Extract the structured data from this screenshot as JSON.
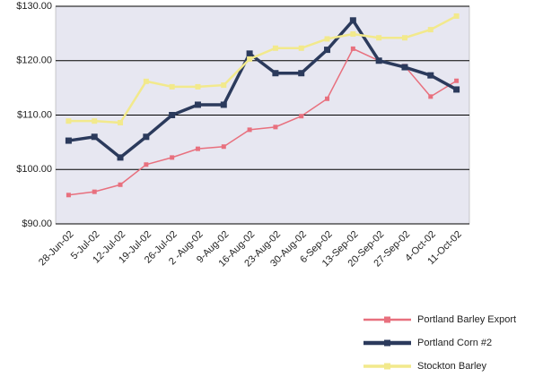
{
  "chart_data": {
    "type": "line",
    "categories": [
      "28-Jun-02",
      "5-Jul-02",
      "12-Jul-02",
      "19-Jul-02",
      "26-Jul-02",
      "2 -Aug-02",
      "9-Aug-02",
      "16-Aug-02",
      "23-Aug-02",
      "30-Aug-02",
      "6-Sep-02",
      "13-Sep-02",
      "20-Sep-02",
      "27-Sep-02",
      "4-Oct-02",
      "11-Oct-02"
    ],
    "series": [
      {
        "name": "Portland Barley Export",
        "color": "#e8707e",
        "values": [
          95.3,
          95.9,
          97.2,
          100.9,
          102.2,
          103.8,
          104.2,
          107.3,
          107.8,
          109.8,
          113.0,
          122.2,
          120.0,
          119.0,
          113.4,
          116.3
        ]
      },
      {
        "name": "Portland Corn #2",
        "color": "#2b3a5c",
        "values": [
          105.3,
          106.0,
          102.2,
          106.0,
          110.0,
          111.9,
          111.9,
          121.3,
          117.7,
          117.7,
          122.0,
          127.4,
          120.0,
          118.8,
          117.3,
          114.7
        ]
      },
      {
        "name": "Stockton Barley",
        "color": "#f2e98c",
        "values": [
          108.9,
          108.9,
          108.6,
          116.2,
          115.2,
          115.2,
          115.5,
          120.3,
          122.3,
          122.3,
          124.0,
          124.9,
          124.2,
          124.2,
          125.7,
          128.2
        ]
      }
    ],
    "ylim": [
      90,
      130
    ],
    "yticks": [
      {
        "value": 90,
        "label": "$90.00"
      },
      {
        "value": 100,
        "label": "$100.00"
      },
      {
        "value": 110,
        "label": "$110.00"
      },
      {
        "value": 120,
        "label": "$120.00"
      },
      {
        "value": 130,
        "label": "$130.00"
      }
    ],
    "grid": true,
    "legend": "bottom-right"
  }
}
